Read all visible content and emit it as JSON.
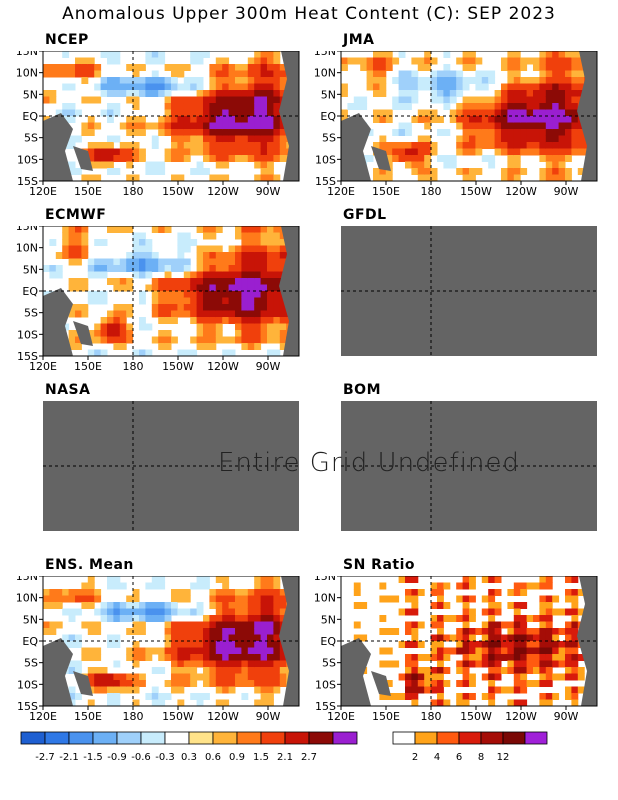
{
  "title": "Anomalous Upper 300m Heat Content (C): SEP 2023",
  "undefined_message": "Entire Grid Undefined",
  "axes": {
    "lat_ticks": [
      "15N",
      "10N",
      "5N",
      "EQ",
      "5S",
      "10S",
      "15S"
    ],
    "lon_ticks": [
      "120E",
      "150E",
      "180",
      "150W",
      "120W",
      "90W"
    ]
  },
  "panels": [
    {
      "name": "NCEP",
      "status": "data"
    },
    {
      "name": "JMA",
      "status": "data"
    },
    {
      "name": "ECMWF",
      "status": "data"
    },
    {
      "name": "GFDL",
      "status": "undefined"
    },
    {
      "name": "NASA",
      "status": "undefined"
    },
    {
      "name": "BOM",
      "status": "undefined"
    },
    {
      "name": "ENS. Mean",
      "status": "data"
    },
    {
      "name": "SN Ratio",
      "status": "data"
    }
  ],
  "colorbar_anomaly": {
    "labels": [
      "-2.7",
      "-2.1",
      "-1.5",
      "-0.9",
      "-0.6",
      "-0.3",
      "0.3",
      "0.6",
      "0.9",
      "1.5",
      "2.1",
      "2.7"
    ],
    "colors": [
      "#1e5fd1",
      "#2f78e6",
      "#4a92ee",
      "#6cb0f5",
      "#9fd0fa",
      "#c8ecfc",
      "#ffffff",
      "#ffe38a",
      "#ffb43a",
      "#ff7a1a",
      "#f0400c",
      "#c81407",
      "#8c0a06",
      "#9a1fd0"
    ]
  },
  "colorbar_snratio": {
    "labels": [
      "2",
      "4",
      "6",
      "8",
      "12"
    ],
    "colors": [
      "#ffffff",
      "#ffa31a",
      "#ff5a10",
      "#d81b0b",
      "#a50d07",
      "#7a0805",
      "#a020d8"
    ]
  },
  "colors": {
    "land": "#646464",
    "undefined_fill": "#646464"
  },
  "chart_data": {
    "type": "heatmap",
    "title": "Anomalous Upper 300m Heat Content (C): SEP 2023",
    "xlabel": "",
    "ylabel": "",
    "x_range": [
      "120E",
      "70W"
    ],
    "y_range": [
      "15S",
      "15N"
    ],
    "panels": [
      "NCEP",
      "JMA",
      "ECMWF",
      "GFDL",
      "NASA",
      "BOM",
      "ENS. Mean",
      "SN Ratio"
    ],
    "undefined_panels": [
      "GFDL",
      "NASA",
      "BOM"
    ],
    "colorbar_levels": [
      -2.7,
      -2.1,
      -1.5,
      -0.9,
      -0.6,
      -0.3,
      0.3,
      0.6,
      0.9,
      1.5,
      2.1,
      2.7
    ],
    "snratio_levels": [
      2,
      4,
      6,
      8,
      12
    ]
  }
}
